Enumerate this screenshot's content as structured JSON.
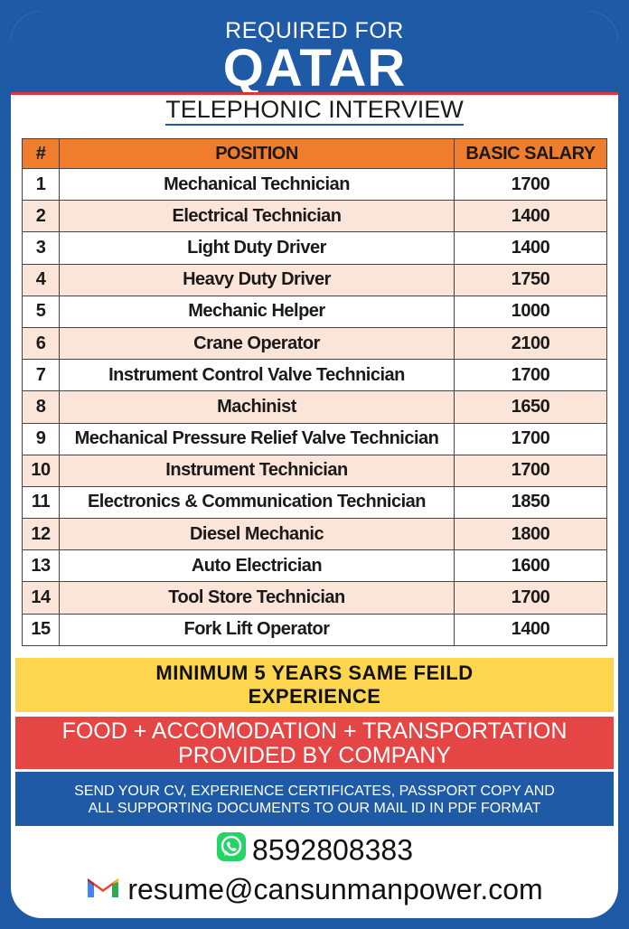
{
  "header": {
    "required_for": "REQUIRED FOR",
    "country": "QATAR",
    "interview": "TELEPHONIC INTERVIEW"
  },
  "table": {
    "headers": [
      "#",
      "POSITION",
      "BASIC SALARY"
    ],
    "rows": [
      {
        "num": "1",
        "position": "Mechanical Technician",
        "salary": "1700"
      },
      {
        "num": "2",
        "position": "Electrical Technician",
        "salary": "1400"
      },
      {
        "num": "3",
        "position": "Light Duty Driver",
        "salary": "1400"
      },
      {
        "num": "4",
        "position": "Heavy Duty Driver",
        "salary": "1750"
      },
      {
        "num": "5",
        "position": "Mechanic Helper",
        "salary": "1000"
      },
      {
        "num": "6",
        "position": "Crane Operator",
        "salary": "2100"
      },
      {
        "num": "7",
        "position": "Instrument Control Valve Technician",
        "salary": "1700"
      },
      {
        "num": "8",
        "position": "Machinist",
        "salary": "1650"
      },
      {
        "num": "9",
        "position": "Mechanical Pressure Relief Valve Technician",
        "salary": "1700"
      },
      {
        "num": "10",
        "position": "Instrument Technician",
        "salary": "1700"
      },
      {
        "num": "11",
        "position": "Electronics & Communication Technician",
        "salary": "1850"
      },
      {
        "num": "12",
        "position": "Diesel Mechanic",
        "salary": "1800"
      },
      {
        "num": "13",
        "position": "Auto Electrician",
        "salary": "1600"
      },
      {
        "num": "14",
        "position": "Tool Store Technician",
        "salary": "1700"
      },
      {
        "num": "15",
        "position": "Fork Lift Operator",
        "salary": "1400"
      }
    ]
  },
  "experience": {
    "line1": "MINIMUM 5 YEARS SAME FEILD",
    "line2": "EXPERIENCE"
  },
  "benefits": {
    "line1": "FOOD + ACCOMODATION + TRANSPORTATION",
    "line2": "PROVIDED BY COMPANY"
  },
  "instructions": {
    "line1": "SEND YOUR CV, EXPERIENCE CERTIFICATES, PASSPORT COPY AND",
    "line2": "ALL SUPPORTING DOCUMENTS TO OUR MAIL ID IN PDF FORMAT"
  },
  "contact": {
    "phone": "8592808383",
    "email": "resume@cansunmanpower.com",
    "phone_icon": "whatsapp-icon",
    "email_icon": "gmail-icon"
  },
  "colors": {
    "frame_blue": "#1f5aa6",
    "table_header": "#f07c2e",
    "row_shade": "#fbe5d8",
    "yellow_band": "#fdd54f",
    "red_band": "#e64545",
    "whatsapp_green": "#25d366"
  }
}
